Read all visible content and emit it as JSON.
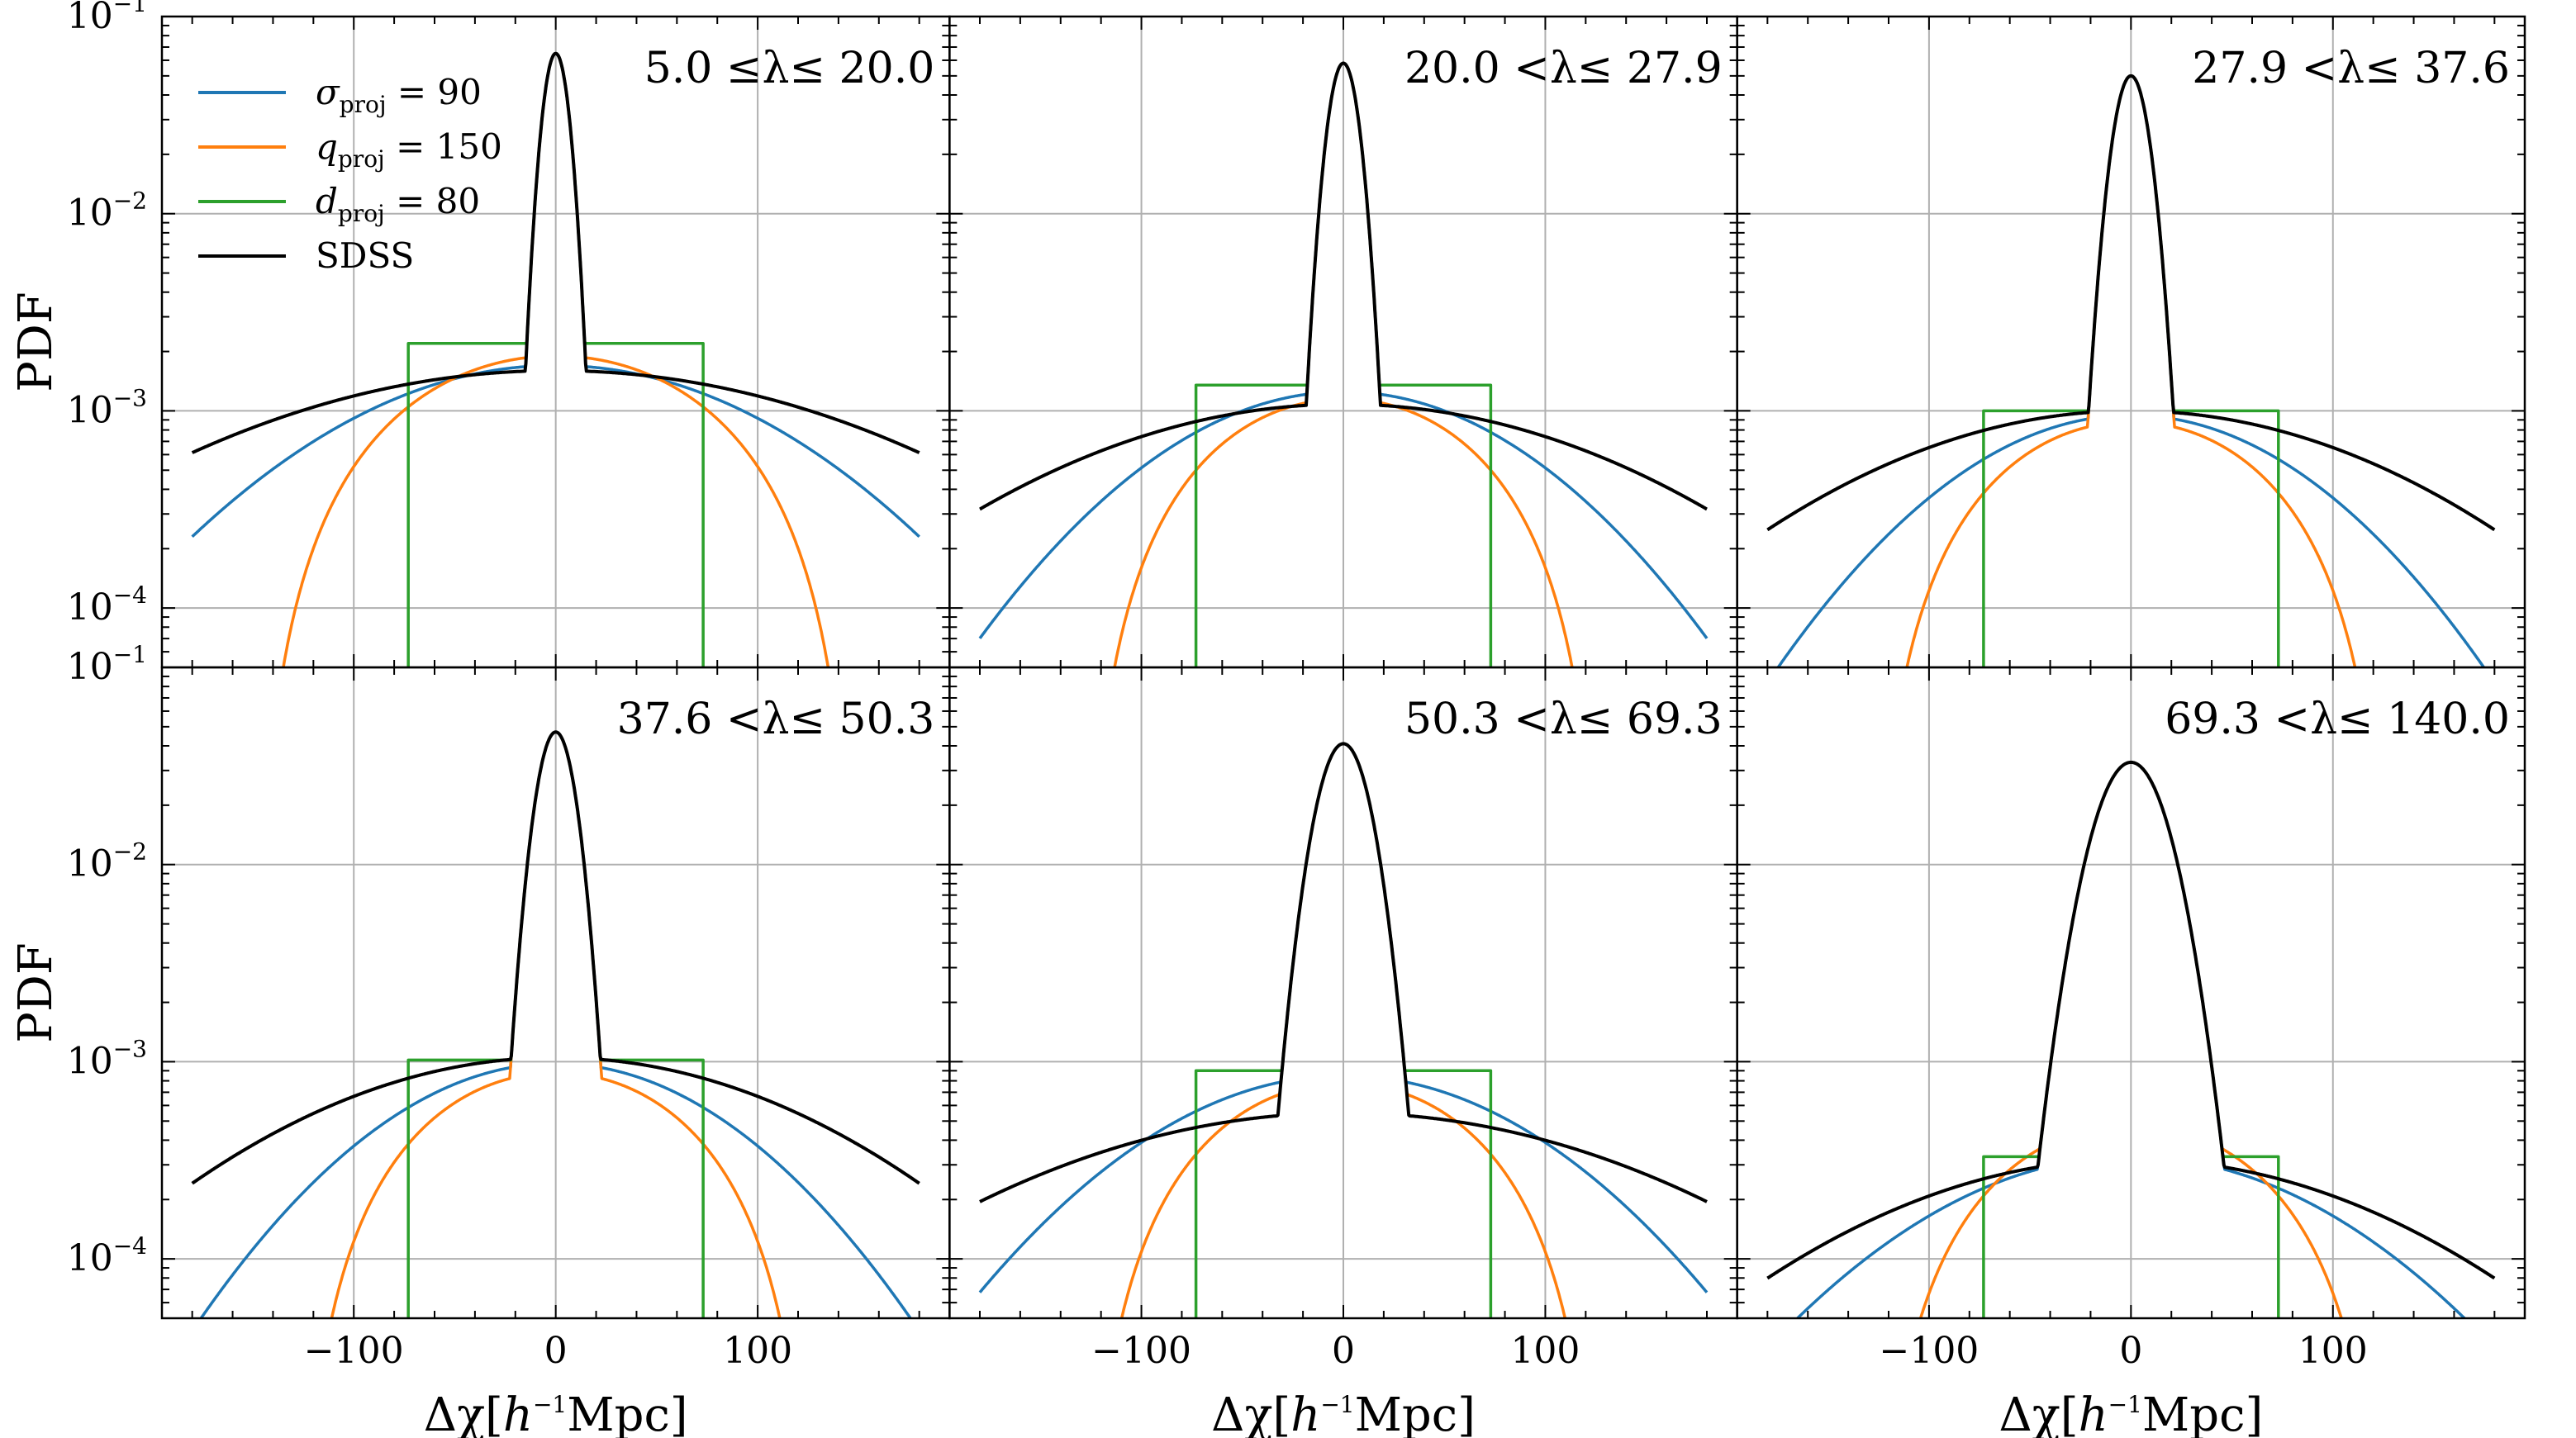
{
  "chart_data": {
    "type": "line",
    "layout": "2x3 grid of panels sharing axes",
    "x_label_prefix": "Δχ[",
    "x_label_h": "h",
    "x_label_exp": "−1",
    "x_label_suffix": "Mpc]",
    "y_label": "PDF",
    "xlim": [
      -195,
      195
    ],
    "ylim": [
      5e-05,
      0.1
    ],
    "x_ticks": [
      -100,
      0,
      100
    ],
    "x_tick_labels": [
      "−100",
      "0",
      "100"
    ],
    "y_ticks": [
      0.0001,
      0.001,
      0.01,
      0.1
    ],
    "y_tick_exponents": [
      "−4",
      "−3",
      "−2",
      "−1"
    ],
    "y_tick_base": "10",
    "grid": true,
    "legend": {
      "position": "top-left of first panel",
      "entries": [
        {
          "symbol": "σ",
          "sub": "proj",
          "rest": "= 90",
          "color": "#1f77b4"
        },
        {
          "symbol": "q",
          "sub": "proj",
          "rest": "= 150",
          "color": "#ff7f0e"
        },
        {
          "symbol": "d",
          "sub": "proj",
          "rest": "= 80",
          "color": "#2ca02c"
        },
        {
          "symbol": "",
          "sub": "",
          "rest": "SDSS",
          "color": "#000000"
        }
      ]
    },
    "panels": [
      {
        "title": "5.0  ≤λ≤ 20.0",
        "peak": 0.065,
        "core_sigma": 5.5,
        "sigma_proj": {
          "plateau": 0.0017,
          "sigma": 90,
          "color": "#1f77b4"
        },
        "q_proj": {
          "plateau": 0.0019,
          "q": 150,
          "color": "#ff7f0e"
        },
        "d_proj": {
          "plateau": 0.0022,
          "d": 73,
          "color": "#2ca02c"
        },
        "sdss": {
          "plateau": 0.0016,
          "sigma": 130,
          "color": "#000000"
        }
      },
      {
        "title": "20.0  <λ≤ 27.9",
        "peak": 0.058,
        "core_sigma": 6.5,
        "sigma_proj": {
          "plateau": 0.00125,
          "sigma": 75,
          "color": "#1f77b4"
        },
        "q_proj": {
          "plateau": 0.00115,
          "q": 130,
          "color": "#ff7f0e"
        },
        "d_proj": {
          "plateau": 0.00135,
          "d": 73,
          "color": "#2ca02c"
        },
        "sdss": {
          "plateau": 0.00108,
          "sigma": 115,
          "color": "#000000"
        }
      },
      {
        "title": "27.9  <λ≤ 37.6",
        "peak": 0.05,
        "core_sigma": 7.5,
        "sigma_proj": {
          "plateau": 0.00095,
          "sigma": 72,
          "color": "#1f77b4"
        },
        "q_proj": {
          "plateau": 0.00088,
          "q": 130,
          "color": "#ff7f0e"
        },
        "d_proj": {
          "plateau": 0.001,
          "d": 73,
          "color": "#2ca02c"
        },
        "sdss": {
          "plateau": 0.001,
          "sigma": 108,
          "color": "#000000"
        }
      },
      {
        "title": "37.6  <λ≤ 50.3",
        "peak": 0.047,
        "core_sigma": 8,
        "sigma_proj": {
          "plateau": 0.00098,
          "sigma": 72,
          "color": "#1f77b4"
        },
        "q_proj": {
          "plateau": 0.00088,
          "q": 130,
          "color": "#ff7f0e"
        },
        "d_proj": {
          "plateau": 0.00102,
          "d": 73,
          "color": "#2ca02c"
        },
        "sdss": {
          "plateau": 0.00105,
          "sigma": 105,
          "color": "#000000"
        }
      },
      {
        "title": "50.3  <λ≤ 69.3",
        "peak": 0.041,
        "core_sigma": 11,
        "sigma_proj": {
          "plateau": 0.00085,
          "sigma": 80,
          "color": "#1f77b4"
        },
        "q_proj": {
          "plateau": 0.00078,
          "q": 130,
          "color": "#ff7f0e"
        },
        "d_proj": {
          "plateau": 0.0009,
          "d": 73,
          "color": "#2ca02c"
        },
        "sdss": {
          "plateau": 0.00055,
          "sigma": 125,
          "color": "#000000"
        }
      },
      {
        "title": "69.3  <λ≤ 140.0",
        "peak": 0.033,
        "core_sigma": 15,
        "sigma_proj": {
          "plateau": 0.00033,
          "sigma": 85,
          "color": "#1f77b4"
        },
        "q_proj": {
          "plateau": 0.00048,
          "q": 130,
          "color": "#ff7f0e"
        },
        "d_proj": {
          "plateau": 0.00033,
          "d": 73,
          "color": "#2ca02c"
        },
        "sdss": {
          "plateau": 0.00032,
          "sigma": 108,
          "color": "#000000"
        }
      }
    ]
  }
}
